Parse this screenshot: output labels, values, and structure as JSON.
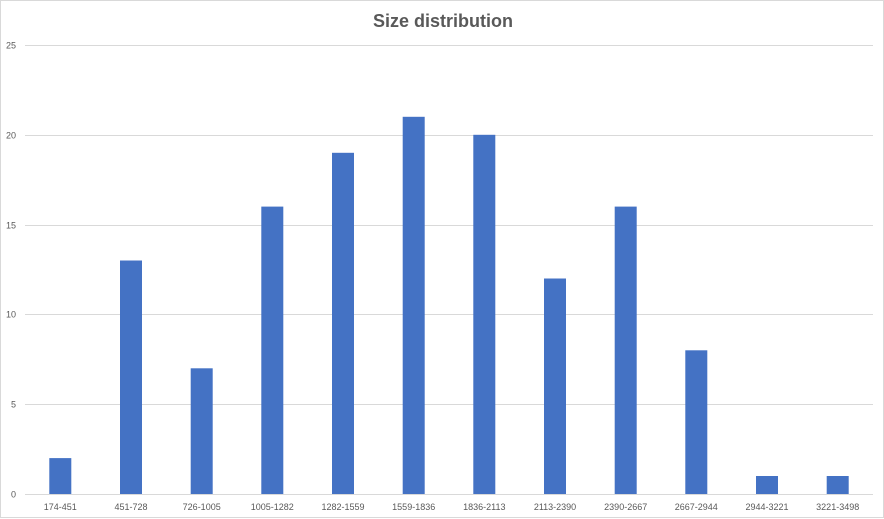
{
  "chart_data": {
    "type": "bar",
    "title": "Size distribution",
    "xlabel": "",
    "ylabel": "",
    "categories": [
      "174-451",
      "451-728",
      "726-1005",
      "1005-1282",
      "1282-1559",
      "1559-1836",
      "1836-2113",
      "2113-2390",
      "2390-2667",
      "2667-2944",
      "2944-3221",
      "3221-3498"
    ],
    "values": [
      2,
      13,
      7,
      16,
      19,
      21,
      20,
      12,
      16,
      8,
      1,
      1
    ],
    "ylim": [
      0,
      25
    ],
    "yticks": [
      0,
      5,
      10,
      15,
      20,
      25
    ],
    "grid": true,
    "legend": "none",
    "bar_color": "#4472C4",
    "grid_color": "#d9d9d9",
    "text_color": "#595959"
  }
}
